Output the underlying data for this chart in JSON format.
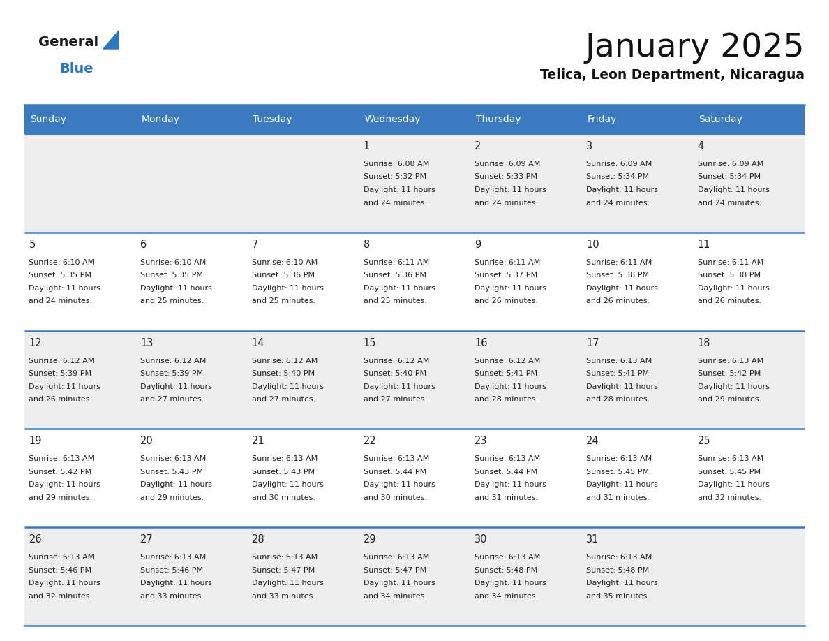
{
  "title": "January 2025",
  "subtitle": "Telica, Leon Department, Nicaragua",
  "header_bg": "#3a7bbf",
  "header_text_color": "#ffffff",
  "day_names": [
    "Sunday",
    "Monday",
    "Tuesday",
    "Wednesday",
    "Thursday",
    "Friday",
    "Saturday"
  ],
  "row_bg_odd": "#eeeeee",
  "row_bg_even": "#ffffff",
  "cell_border_color": "#3a7bbf",
  "day_number_color": "#222222",
  "text_color": "#222222",
  "logo_general_color": "#1a1a1a",
  "logo_blue_color": "#2b78c2",
  "calendar_data": [
    [
      null,
      null,
      null,
      {
        "day": 1,
        "sunrise": "6:08 AM",
        "sunset": "5:32 PM",
        "daylight_h": "11 hours",
        "daylight_m": "24 minutes."
      },
      {
        "day": 2,
        "sunrise": "6:09 AM",
        "sunset": "5:33 PM",
        "daylight_h": "11 hours",
        "daylight_m": "24 minutes."
      },
      {
        "day": 3,
        "sunrise": "6:09 AM",
        "sunset": "5:34 PM",
        "daylight_h": "11 hours",
        "daylight_m": "24 minutes."
      },
      {
        "day": 4,
        "sunrise": "6:09 AM",
        "sunset": "5:34 PM",
        "daylight_h": "11 hours",
        "daylight_m": "24 minutes."
      }
    ],
    [
      {
        "day": 5,
        "sunrise": "6:10 AM",
        "sunset": "5:35 PM",
        "daylight_h": "11 hours",
        "daylight_m": "24 minutes."
      },
      {
        "day": 6,
        "sunrise": "6:10 AM",
        "sunset": "5:35 PM",
        "daylight_h": "11 hours",
        "daylight_m": "25 minutes."
      },
      {
        "day": 7,
        "sunrise": "6:10 AM",
        "sunset": "5:36 PM",
        "daylight_h": "11 hours",
        "daylight_m": "25 minutes."
      },
      {
        "day": 8,
        "sunrise": "6:11 AM",
        "sunset": "5:36 PM",
        "daylight_h": "11 hours",
        "daylight_m": "25 minutes."
      },
      {
        "day": 9,
        "sunrise": "6:11 AM",
        "sunset": "5:37 PM",
        "daylight_h": "11 hours",
        "daylight_m": "26 minutes."
      },
      {
        "day": 10,
        "sunrise": "6:11 AM",
        "sunset": "5:38 PM",
        "daylight_h": "11 hours",
        "daylight_m": "26 minutes."
      },
      {
        "day": 11,
        "sunrise": "6:11 AM",
        "sunset": "5:38 PM",
        "daylight_h": "11 hours",
        "daylight_m": "26 minutes."
      }
    ],
    [
      {
        "day": 12,
        "sunrise": "6:12 AM",
        "sunset": "5:39 PM",
        "daylight_h": "11 hours",
        "daylight_m": "26 minutes."
      },
      {
        "day": 13,
        "sunrise": "6:12 AM",
        "sunset": "5:39 PM",
        "daylight_h": "11 hours",
        "daylight_m": "27 minutes."
      },
      {
        "day": 14,
        "sunrise": "6:12 AM",
        "sunset": "5:40 PM",
        "daylight_h": "11 hours",
        "daylight_m": "27 minutes."
      },
      {
        "day": 15,
        "sunrise": "6:12 AM",
        "sunset": "5:40 PM",
        "daylight_h": "11 hours",
        "daylight_m": "27 minutes."
      },
      {
        "day": 16,
        "sunrise": "6:12 AM",
        "sunset": "5:41 PM",
        "daylight_h": "11 hours",
        "daylight_m": "28 minutes."
      },
      {
        "day": 17,
        "sunrise": "6:13 AM",
        "sunset": "5:41 PM",
        "daylight_h": "11 hours",
        "daylight_m": "28 minutes."
      },
      {
        "day": 18,
        "sunrise": "6:13 AM",
        "sunset": "5:42 PM",
        "daylight_h": "11 hours",
        "daylight_m": "29 minutes."
      }
    ],
    [
      {
        "day": 19,
        "sunrise": "6:13 AM",
        "sunset": "5:42 PM",
        "daylight_h": "11 hours",
        "daylight_m": "29 minutes."
      },
      {
        "day": 20,
        "sunrise": "6:13 AM",
        "sunset": "5:43 PM",
        "daylight_h": "11 hours",
        "daylight_m": "29 minutes."
      },
      {
        "day": 21,
        "sunrise": "6:13 AM",
        "sunset": "5:43 PM",
        "daylight_h": "11 hours",
        "daylight_m": "30 minutes."
      },
      {
        "day": 22,
        "sunrise": "6:13 AM",
        "sunset": "5:44 PM",
        "daylight_h": "11 hours",
        "daylight_m": "30 minutes."
      },
      {
        "day": 23,
        "sunrise": "6:13 AM",
        "sunset": "5:44 PM",
        "daylight_h": "11 hours",
        "daylight_m": "31 minutes."
      },
      {
        "day": 24,
        "sunrise": "6:13 AM",
        "sunset": "5:45 PM",
        "daylight_h": "11 hours",
        "daylight_m": "31 minutes."
      },
      {
        "day": 25,
        "sunrise": "6:13 AM",
        "sunset": "5:45 PM",
        "daylight_h": "11 hours",
        "daylight_m": "32 minutes."
      }
    ],
    [
      {
        "day": 26,
        "sunrise": "6:13 AM",
        "sunset": "5:46 PM",
        "daylight_h": "11 hours",
        "daylight_m": "32 minutes."
      },
      {
        "day": 27,
        "sunrise": "6:13 AM",
        "sunset": "5:46 PM",
        "daylight_h": "11 hours",
        "daylight_m": "33 minutes."
      },
      {
        "day": 28,
        "sunrise": "6:13 AM",
        "sunset": "5:47 PM",
        "daylight_h": "11 hours",
        "daylight_m": "33 minutes."
      },
      {
        "day": 29,
        "sunrise": "6:13 AM",
        "sunset": "5:47 PM",
        "daylight_h": "11 hours",
        "daylight_m": "34 minutes."
      },
      {
        "day": 30,
        "sunrise": "6:13 AM",
        "sunset": "5:48 PM",
        "daylight_h": "11 hours",
        "daylight_m": "34 minutes."
      },
      {
        "day": 31,
        "sunrise": "6:13 AM",
        "sunset": "5:48 PM",
        "daylight_h": "11 hours",
        "daylight_m": "35 minutes."
      },
      null
    ]
  ]
}
